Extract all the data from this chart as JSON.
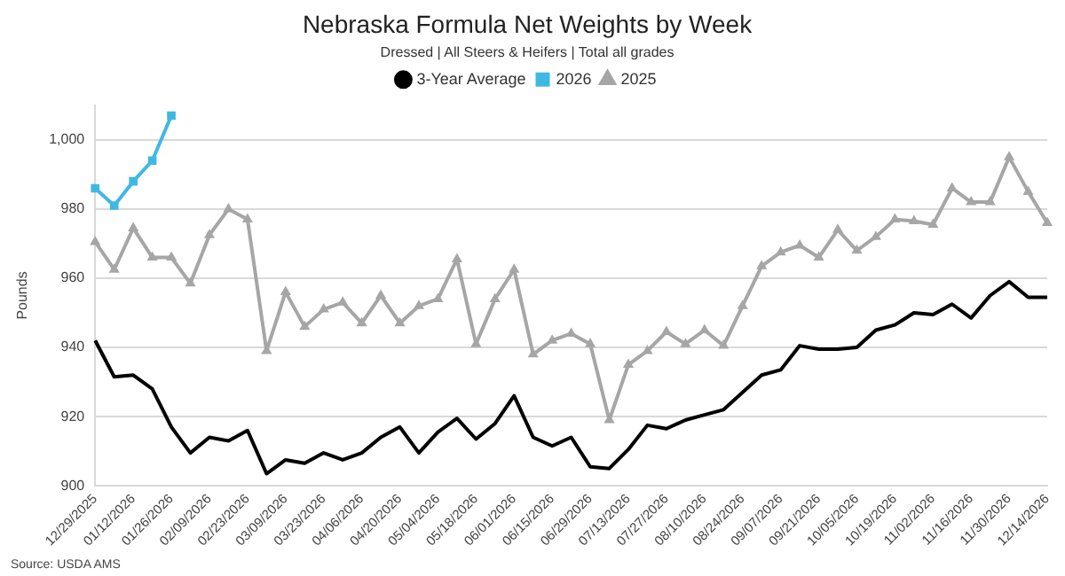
{
  "chart_data": {
    "type": "line",
    "title": "Nebraska Formula Net Weights by Week",
    "subtitle": "Dressed | All Steers & Heifers | Total all grades",
    "ylabel": "Pounds",
    "annotations": [
      "Source: USDA AMS"
    ],
    "categories": [
      "12/29/2025",
      null,
      "01/12/2026",
      null,
      "01/26/2026",
      null,
      "02/09/2026",
      null,
      "02/23/2026",
      null,
      "03/09/2026",
      null,
      "03/23/2026",
      null,
      "04/06/2026",
      null,
      "04/20/2026",
      null,
      "05/04/2026",
      null,
      "05/18/2026",
      null,
      "06/01/2026",
      null,
      "06/15/2026",
      null,
      "06/29/2026",
      null,
      "07/13/2026",
      null,
      "07/27/2026",
      null,
      "08/10/2026",
      null,
      "08/24/2026",
      null,
      "09/07/2026",
      null,
      "09/21/2026",
      null,
      "10/05/2026",
      null,
      "10/19/2026",
      null,
      "11/02/2026",
      null,
      "11/16/2026",
      null,
      "11/30/2026",
      null,
      "12/14/2026"
    ],
    "series": [
      {
        "name": "3-Year Average",
        "color": "#000000",
        "marker": "none",
        "values": [
          942,
          931.5,
          932,
          928,
          917,
          909.5,
          914,
          913,
          916,
          903.5,
          907.5,
          906.5,
          909.5,
          907.5,
          909.5,
          914,
          917,
          909.5,
          915.5,
          919.5,
          913.5,
          918,
          926,
          914,
          911.5,
          914,
          905.5,
          905,
          910.5,
          917.5,
          916.5,
          919,
          920.5,
          922,
          927,
          932,
          933.5,
          940.5,
          939.5,
          939.5,
          940,
          945,
          946.5,
          950,
          949.5,
          952.5,
          948.5,
          955,
          959,
          954.5,
          954.5
        ]
      },
      {
        "name": "2026",
        "color": "#3fb8e3",
        "marker": "square",
        "values": [
          986,
          981,
          988,
          994,
          1007,
          null,
          null,
          null,
          null,
          null,
          null,
          null,
          null,
          null,
          null,
          null,
          null,
          null,
          null,
          null,
          null,
          null,
          null,
          null,
          null,
          null,
          null,
          null,
          null,
          null,
          null,
          null,
          null,
          null,
          null,
          null,
          null,
          null,
          null,
          null,
          null,
          null,
          null,
          null,
          null,
          null,
          null,
          null,
          null,
          null,
          null
        ]
      },
      {
        "name": "2025",
        "color": "#a6a6a6",
        "marker": "triangle",
        "values": [
          970.5,
          962.5,
          974.5,
          966,
          966,
          958.5,
          972.5,
          980,
          977,
          939,
          956,
          946,
          951,
          953,
          947,
          955,
          947,
          952,
          954,
          965.5,
          941,
          954,
          962.5,
          938,
          942,
          944,
          941,
          919,
          935,
          939,
          944.5,
          941,
          945,
          940.5,
          952,
          963.5,
          967.5,
          969.5,
          966,
          974,
          968,
          972,
          977,
          976.5,
          975.5,
          986,
          982,
          982,
          995,
          985,
          976
        ]
      }
    ],
    "ylim": [
      900,
      1010
    ],
    "yticks": [
      900,
      920,
      940,
      960,
      980,
      {
        "value": 1000,
        "label": "1,000"
      }
    ],
    "grid": "y",
    "legend": "top"
  }
}
